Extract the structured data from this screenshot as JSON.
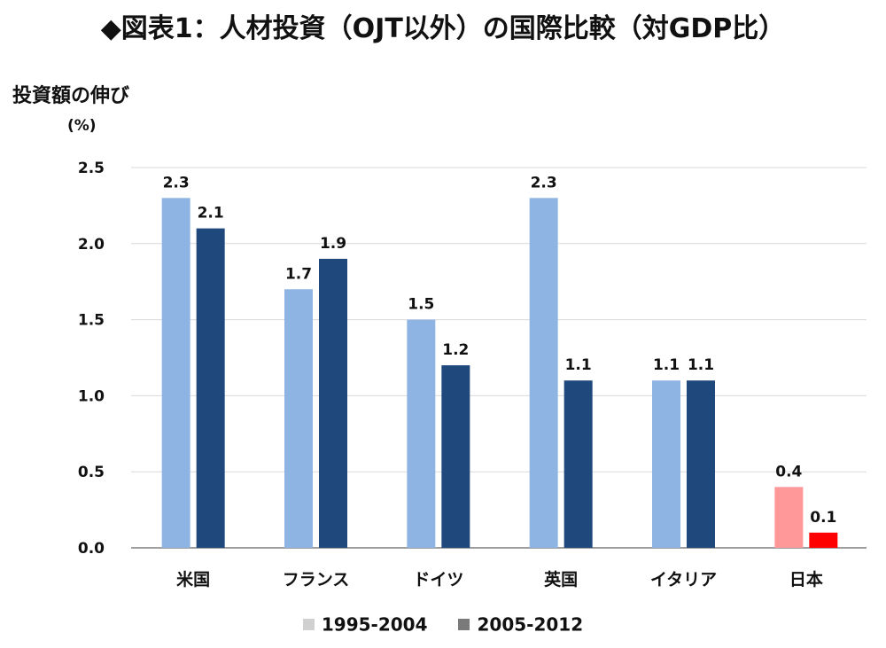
{
  "title": "◆図表1：人材投資（OJT以外）の国際比較（対GDP比）",
  "subtitle": "投資額の伸び",
  "chart_data": {
    "type": "bar",
    "title": "◆図表1：人材投資（OJT以外）の国際比較（対GDP比）",
    "ylabel": "(%)",
    "xlabel": "",
    "ylim": [
      0,
      2.5
    ],
    "yticks": [
      "0.0",
      "0.5",
      "1.0",
      "1.5",
      "2.0",
      "2.5"
    ],
    "grid": true,
    "legend_position": "bottom",
    "categories": [
      "米国",
      "フランス",
      "ドイツ",
      "英国",
      "イタリア",
      "日本"
    ],
    "series": [
      {
        "name": "1995-2004",
        "values": [
          2.3,
          1.7,
          1.5,
          2.3,
          1.1,
          0.4
        ],
        "labels": [
          "2.3",
          "1.7",
          "1.5",
          "2.3",
          "1.1",
          "0.4"
        ],
        "color": "#8eb4e3",
        "highlight_color": "#ff9999",
        "legend_color": "#d0d0d0"
      },
      {
        "name": "2005-2012",
        "values": [
          2.1,
          1.9,
          1.2,
          1.1,
          1.1,
          0.1
        ],
        "labels": [
          "2.1",
          "1.9",
          "1.2",
          "1.1",
          "1.1",
          "0.1"
        ],
        "color": "#1f497d",
        "highlight_color": "#ff0000",
        "legend_color": "#7a7a7a"
      }
    ],
    "highlight_category": "日本"
  }
}
